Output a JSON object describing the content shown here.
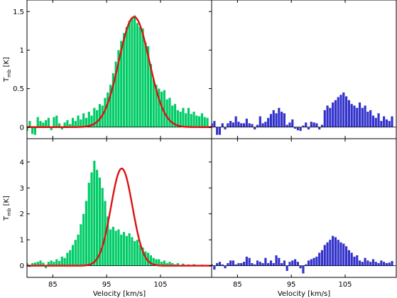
{
  "chart_data": [
    {
      "type": "bar",
      "panel": "top-left",
      "ylabel": "T_mb [K]",
      "ylabel_main": "T",
      "ylabel_sub": "mb",
      "ylabel_unit": " [K]",
      "xlim": [
        80.2,
        114.5
      ],
      "ylim": [
        -0.15,
        1.65
      ],
      "xticks": [
        85,
        95,
        105
      ],
      "yticks": [
        0,
        0.5,
        1,
        1.5
      ],
      "ytick_labels": [
        "0",
        "0.5",
        "1",
        "1.5"
      ],
      "bar_color": "#00cc66",
      "fit": {
        "type": "gaussian",
        "amplitude": 1.43,
        "center": 100.1,
        "sigma": 2.8,
        "color": "#dd1111"
      },
      "bins": {
        "start": 80.0,
        "width": 0.5
      },
      "values": [
        -0.05,
        0.08,
        -0.09,
        -0.1,
        0.13,
        0.08,
        0.06,
        0.09,
        0.12,
        -0.04,
        0.13,
        0.15,
        0.05,
        -0.03,
        0.06,
        0.09,
        0.04,
        0.12,
        0.08,
        0.15,
        0.1,
        0.18,
        0.12,
        0.2,
        0.15,
        0.25,
        0.22,
        0.3,
        0.28,
        0.38,
        0.45,
        0.55,
        0.7,
        0.85,
        1.0,
        1.12,
        1.22,
        1.3,
        1.38,
        1.42,
        1.45,
        1.35,
        1.3,
        1.28,
        1.1,
        1.05,
        0.82,
        0.62,
        0.55,
        0.5,
        0.46,
        0.48,
        0.36,
        0.38,
        0.28,
        0.3,
        0.22,
        0.2,
        0.25,
        0.18,
        0.25,
        0.17,
        0.2,
        0.15,
        0.14,
        0.18,
        0.13,
        0.12
      ]
    },
    {
      "type": "bar",
      "panel": "top-right",
      "xlim": [
        80.2,
        114.5
      ],
      "ylim": [
        -0.15,
        1.65
      ],
      "xticks": [
        85,
        95,
        105
      ],
      "bar_color": "#3333cc",
      "bins": {
        "start": 80.0,
        "width": 0.5
      },
      "values": [
        0.05,
        0.08,
        -0.1,
        -0.1,
        0.05,
        -0.03,
        0.05,
        0.08,
        0.06,
        0.14,
        0.07,
        0.05,
        0.05,
        0.11,
        0.05,
        0.04,
        -0.03,
        0.03,
        0.14,
        0.05,
        0.07,
        0.12,
        0.17,
        0.22,
        0.18,
        0.25,
        0.2,
        0.18,
        0.03,
        0.06,
        0.1,
        -0.02,
        -0.04,
        -0.05,
        0.02,
        0.06,
        -0.03,
        0.07,
        0.06,
        0.05,
        -0.03,
        0.03,
        0.22,
        0.28,
        0.25,
        0.32,
        0.35,
        0.39,
        0.42,
        0.45,
        0.4,
        0.35,
        0.3,
        0.28,
        0.25,
        0.32,
        0.25,
        0.28,
        0.2,
        0.22,
        0.15,
        0.12,
        0.18,
        0.08,
        0.14,
        0.1,
        0.08,
        0.14
      ]
    },
    {
      "type": "bar",
      "panel": "bottom-left",
      "ylabel": "T_mb [K]",
      "ylabel_main": "T",
      "ylabel_sub": "mb",
      "ylabel_unit": " [K]",
      "xlabel": "Velocity [km/s]",
      "xlim": [
        80.2,
        114.5
      ],
      "ylim": [
        -0.45,
        4.9
      ],
      "xticks": [
        85,
        95,
        105
      ],
      "xtick_labels": [
        "85",
        "95",
        "105"
      ],
      "yticks": [
        0,
        1,
        2,
        3,
        4
      ],
      "ytick_labels": [
        "0",
        "1",
        "2",
        "3",
        "4"
      ],
      "bar_color": "#00cc66",
      "fit": {
        "type": "gaussian",
        "amplitude": 3.75,
        "center": 97.8,
        "sigma": 2.0,
        "color": "#dd1111"
      },
      "bins": {
        "start": 80.0,
        "width": 0.5
      },
      "values": [
        0.1,
        -0.05,
        0.1,
        0.12,
        0.15,
        0.2,
        0.12,
        -0.1,
        0.15,
        0.2,
        0.15,
        0.25,
        0.18,
        0.35,
        0.3,
        0.5,
        0.6,
        0.8,
        1.0,
        1.2,
        1.6,
        2.0,
        2.5,
        3.2,
        3.6,
        4.05,
        3.7,
        3.4,
        3.0,
        2.5,
        1.9,
        1.4,
        1.5,
        1.35,
        1.4,
        1.2,
        1.3,
        1.15,
        1.25,
        1.1,
        0.95,
        1.0,
        0.8,
        0.7,
        0.55,
        0.5,
        0.4,
        0.3,
        0.25,
        0.25,
        0.15,
        0.2,
        0.1,
        0.15,
        0.1,
        0.05,
        0.1,
        0.02,
        0.08,
        0.03,
        0.05,
        0.02,
        0.06,
        0.03,
        0.02,
        0.04,
        0.01,
        0.03
      ]
    },
    {
      "type": "bar",
      "panel": "bottom-right",
      "xlabel": "Velocity [km/s]",
      "xlim": [
        80.2,
        114.5
      ],
      "ylim": [
        -0.45,
        4.9
      ],
      "xticks": [
        85,
        95,
        105
      ],
      "xtick_labels": [
        "85",
        "95",
        "105"
      ],
      "bar_color": "#3333cc",
      "bins": {
        "start": 80.0,
        "width": 0.5
      },
      "values": [
        0.05,
        -0.15,
        0.1,
        0.15,
        0.05,
        -0.1,
        0.1,
        0.2,
        0.2,
        0.05,
        0.1,
        0.1,
        0.15,
        0.35,
        0.3,
        0.1,
        0.05,
        0.2,
        0.15,
        0.1,
        0.3,
        0.1,
        0.2,
        0.1,
        0.4,
        0.3,
        0.1,
        0.2,
        -0.2,
        0.15,
        0.2,
        0.25,
        0.15,
        -0.1,
        -0.3,
        0.05,
        0.2,
        0.25,
        0.3,
        0.35,
        0.5,
        0.6,
        0.8,
        0.9,
        1.0,
        1.15,
        1.1,
        1.0,
        0.9,
        0.85,
        0.75,
        0.6,
        0.5,
        0.35,
        0.4,
        0.2,
        0.15,
        0.3,
        0.2,
        0.15,
        0.25,
        0.15,
        0.1,
        0.2,
        0.15,
        0.1,
        0.12,
        0.18
      ]
    }
  ]
}
